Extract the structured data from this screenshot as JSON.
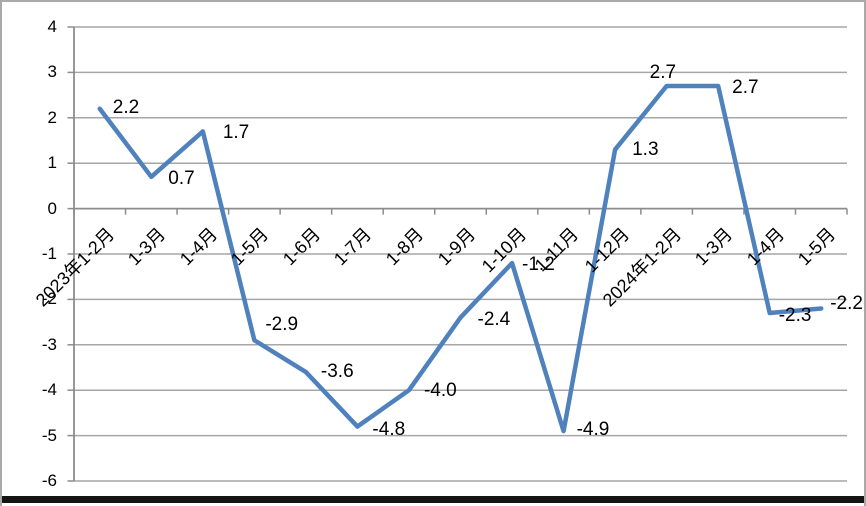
{
  "chart_data": {
    "type": "line",
    "title": "",
    "xlabel": "",
    "ylabel": "",
    "categories": [
      "2023年1-2月",
      "1-3月",
      "1-4月",
      "1-5月",
      "1-6月",
      "1-7月",
      "1-8月",
      "1-9月",
      "1-10月",
      "1-11月",
      "1-12月",
      "2024年1-2月",
      "1-3月",
      "1-4月",
      "1-5月"
    ],
    "values": [
      2.2,
      0.7,
      1.7,
      -2.9,
      -3.6,
      -4.8,
      -4.0,
      -2.4,
      -1.2,
      -4.9,
      1.3,
      2.7,
      2.7,
      -2.3,
      -2.2
    ],
    "data_labels": [
      "2.2",
      "0.7",
      "1.7",
      "-2.9",
      "-3.6",
      "-4.8",
      "-4.0",
      "-2.4",
      "-1.2",
      "-4.9",
      "1.3",
      "2.7",
      "2.7",
      "-2.3",
      "-2.2"
    ],
    "y_tick_labels": [
      "4",
      "3",
      "2",
      "1",
      "0",
      "-1",
      "-2",
      "-3",
      "-4",
      "-5",
      "-6"
    ],
    "y_ticks": [
      4,
      3,
      2,
      1,
      0,
      -1,
      -2,
      -3,
      -4,
      -5,
      -6
    ],
    "ylim": [
      -6,
      4
    ],
    "grid": true,
    "legend": false,
    "colors": {
      "line": "#4F81BD",
      "gridline": "#a6a6a6",
      "axis": "#8c8c8c",
      "text": "#000000",
      "frame": "#a9a9a9",
      "bottom_edge": "#141414"
    }
  }
}
